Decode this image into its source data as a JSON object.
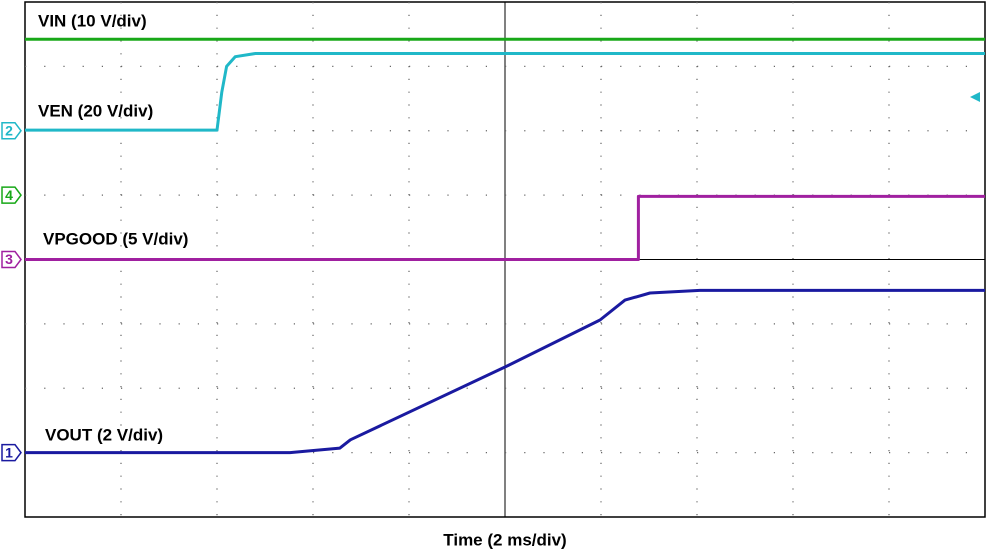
{
  "chart_data": {
    "type": "line",
    "xlabel": "Time (2 ms/div)",
    "xlim": [
      0,
      10
    ],
    "ylim": [
      0,
      8
    ],
    "grid": true,
    "series": [
      {
        "name": "VIN (10 V/div)",
        "channel": "4",
        "color": "#18a818",
        "offset": 5.0,
        "x": [
          0,
          10
        ],
        "values": [
          7.42,
          7.42
        ]
      },
      {
        "name": "VEN (20 V/div)",
        "channel": "2",
        "color": "#20b8c8",
        "offset": 6.0,
        "x": [
          0,
          2.0,
          2.05,
          2.1,
          2.19,
          2.4,
          10
        ],
        "values": [
          6.01,
          6.01,
          6.6,
          7.0,
          7.15,
          7.2,
          7.2
        ]
      },
      {
        "name": "VPGOOD (5 V/div)",
        "channel": "3",
        "color": "#a020a0",
        "offset": 4.0,
        "x": [
          0,
          6.39,
          6.39,
          10
        ],
        "values": [
          4.0,
          4.0,
          4.98,
          4.98
        ]
      },
      {
        "name": "VOUT (2 V/div)",
        "channel": "1",
        "color": "#1a1aa0",
        "offset": 1.0,
        "x": [
          0,
          2.76,
          3.28,
          3.39,
          5.0,
          5.99,
          6.25,
          6.51,
          7.03,
          10
        ],
        "values": [
          1.0,
          1.0,
          1.07,
          1.2,
          2.33,
          3.06,
          3.37,
          3.48,
          3.52,
          3.52
        ]
      }
    ]
  }
}
